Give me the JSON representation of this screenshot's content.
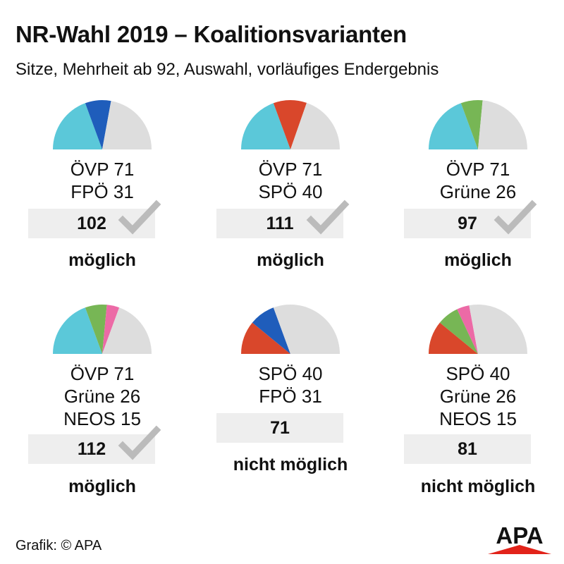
{
  "title": "NR-Wahl 2019 – Koalitionsvarianten",
  "subtitle": "Sitze, Mehrheit ab 92, Auswahl, vorläufiges Endergebnis",
  "credit": "Grafik: © APA",
  "logo_text": "APA",
  "colors": {
    "ÖVP": "#5bc8d9",
    "FPÖ": "#1f5dbb",
    "SPÖ": "#d9472b",
    "Grüne": "#77b655",
    "NEOS": "#ec6aa6",
    "rest": "#dddddd",
    "check": "#bbbbbb",
    "logo_red": "#e2231a"
  },
  "chart_data": {
    "type": "pie",
    "total_seats": 183,
    "majority": 92,
    "coalitions": [
      {
        "parties": [
          {
            "name": "ÖVP",
            "label": "ÖVP 71",
            "seats": 71
          },
          {
            "name": "FPÖ",
            "label": "FPÖ 31",
            "seats": 31
          }
        ],
        "total": "102",
        "sum": 102,
        "status": "möglich",
        "possible": true
      },
      {
        "parties": [
          {
            "name": "ÖVP",
            "label": "ÖVP 71",
            "seats": 71
          },
          {
            "name": "SPÖ",
            "label": "SPÖ 40",
            "seats": 40
          }
        ],
        "total": "111",
        "sum": 111,
        "status": "möglich",
        "possible": true
      },
      {
        "parties": [
          {
            "name": "ÖVP",
            "label": "ÖVP 71",
            "seats": 71
          },
          {
            "name": "Grüne",
            "label": "Grüne 26",
            "seats": 26
          }
        ],
        "total": "97",
        "sum": 97,
        "status": "möglich",
        "possible": true
      },
      {
        "parties": [
          {
            "name": "ÖVP",
            "label": "ÖVP 71",
            "seats": 71
          },
          {
            "name": "Grüne",
            "label": "Grüne 26",
            "seats": 26
          },
          {
            "name": "NEOS",
            "label": "NEOS 15",
            "seats": 15
          }
        ],
        "total": "112",
        "sum": 112,
        "status": "möglich",
        "possible": true
      },
      {
        "parties": [
          {
            "name": "SPÖ",
            "label": "SPÖ 40",
            "seats": 40
          },
          {
            "name": "FPÖ",
            "label": "FPÖ 31",
            "seats": 31
          }
        ],
        "total": "71",
        "sum": 71,
        "status": "nicht möglich",
        "possible": false
      },
      {
        "parties": [
          {
            "name": "SPÖ",
            "label": "SPÖ 40",
            "seats": 40
          },
          {
            "name": "Grüne",
            "label": "Grüne 26",
            "seats": 26
          },
          {
            "name": "NEOS",
            "label": "NEOS 15",
            "seats": 15
          }
        ],
        "total": "81",
        "sum": 81,
        "status": "nicht möglich",
        "possible": false
      }
    ]
  }
}
